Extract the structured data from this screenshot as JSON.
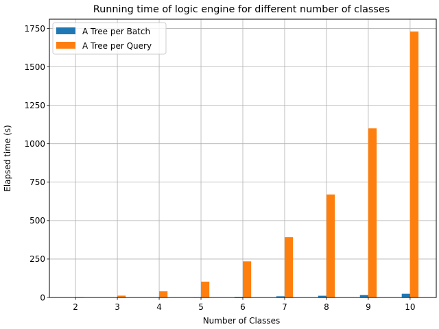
{
  "chart_data": {
    "type": "bar",
    "title": "Running time of logic engine for different number of classes",
    "xlabel": "Number of Classes",
    "ylabel": "Elapsed time (s)",
    "categories": [
      "2",
      "3",
      "4",
      "5",
      "6",
      "7",
      "8",
      "9",
      "10"
    ],
    "ylim": [
      0,
      1810
    ],
    "yticks": [
      0,
      250,
      500,
      750,
      1000,
      1250,
      1500,
      1750
    ],
    "grid": true,
    "legend_position": "top-left",
    "series": [
      {
        "name": "A Tree per Batch",
        "color": "#1f77b4",
        "values": [
          0.2,
          0.5,
          1.2,
          2.5,
          4.5,
          7.5,
          11,
          16,
          24
        ]
      },
      {
        "name": "A Tree per Query",
        "color": "#ff7f0e",
        "values": [
          3,
          12,
          40,
          103,
          235,
          392,
          670,
          1100,
          1730
        ]
      }
    ]
  }
}
